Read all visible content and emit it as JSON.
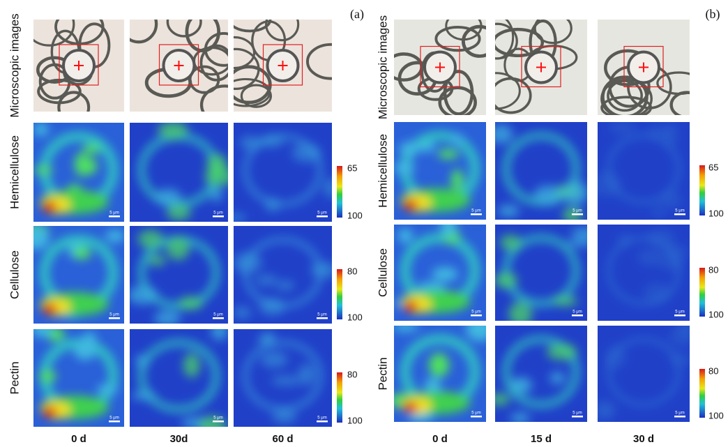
{
  "panels": [
    {
      "label": "(a)",
      "rows": [
        {
          "label": "Microscopic images"
        },
        {
          "label": "Hemicellulose",
          "scale": [
            65,
            100
          ]
        },
        {
          "label": "Cellulose",
          "scale": [
            80,
            100
          ]
        },
        {
          "label": "Pectin",
          "scale": [
            80,
            100
          ]
        }
      ],
      "columns": [
        "0 d",
        "30d",
        "60 d"
      ],
      "scale_bar": "5 μm"
    },
    {
      "label": "(b)",
      "rows": [
        {
          "label": "Microscopic images"
        },
        {
          "label": "Hemicellulose",
          "scale": [
            65,
            100
          ]
        },
        {
          "label": "Cellulose",
          "scale": [
            80,
            100
          ]
        },
        {
          "label": "Pectin",
          "scale": [
            80,
            100
          ]
        }
      ],
      "columns": [
        "0 d",
        "15 d",
        "30 d"
      ],
      "scale_bar": "5 μm"
    }
  ]
}
